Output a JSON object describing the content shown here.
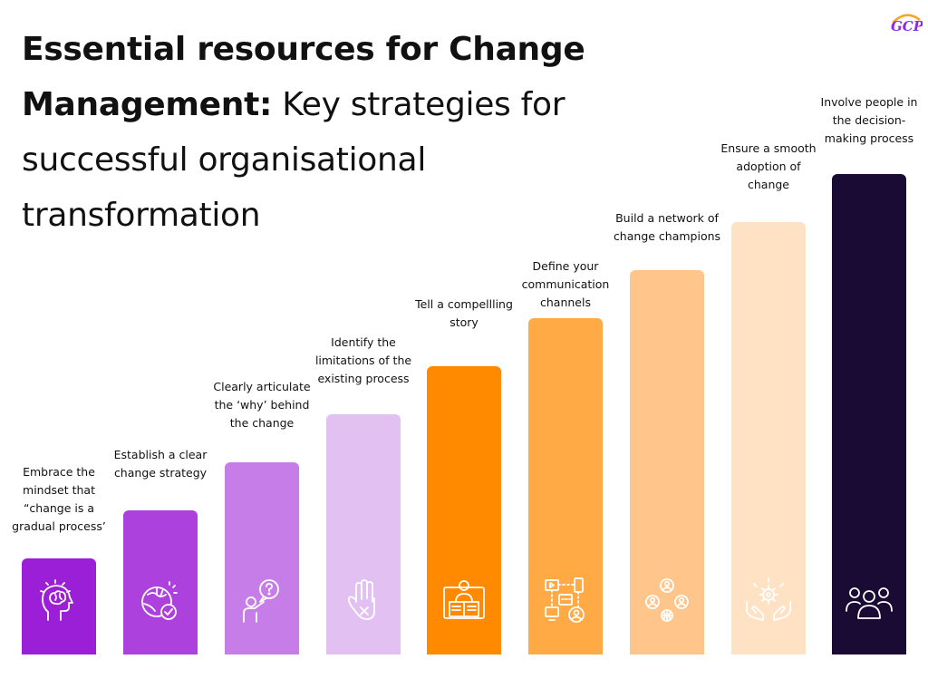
{
  "title": {
    "bold": "Essential resources for Change Management:",
    "rest": "Key strategies for successful organisational transformation"
  },
  "logo": {
    "text": "GCP"
  },
  "steps": [
    {
      "label": "Embrace the mindset that “change is a gradual process’",
      "color": "#9b1fd6",
      "icon": "brain-icon"
    },
    {
      "label": "Establish a clear change strategy",
      "color": "#ad41dd",
      "icon": "puzzle-globe-icon"
    },
    {
      "label": "Clearly articulate the ‘why’ behind the change",
      "color": "#c77de8",
      "icon": "question-person-icon"
    },
    {
      "label": "Identify the limitations of the existing process",
      "color": "#e2c1f2",
      "icon": "stop-hand-icon"
    },
    {
      "label": "Tell a compellling story",
      "color": "#ff8a00",
      "icon": "storyteller-book-icon"
    },
    {
      "label": "Define your communication channels",
      "color": "#ffaa45",
      "icon": "communication-channels-icon"
    },
    {
      "label": "Build a network of change champions",
      "color": "#ffc58a",
      "icon": "network-people-icon"
    },
    {
      "label": "Ensure a smooth adoption of change",
      "color": "#ffe2c4",
      "icon": "hands-gear-icon"
    },
    {
      "label": "Involve people in the decision-making process",
      "color": "#190b33",
      "icon": "group-people-icon"
    }
  ]
}
